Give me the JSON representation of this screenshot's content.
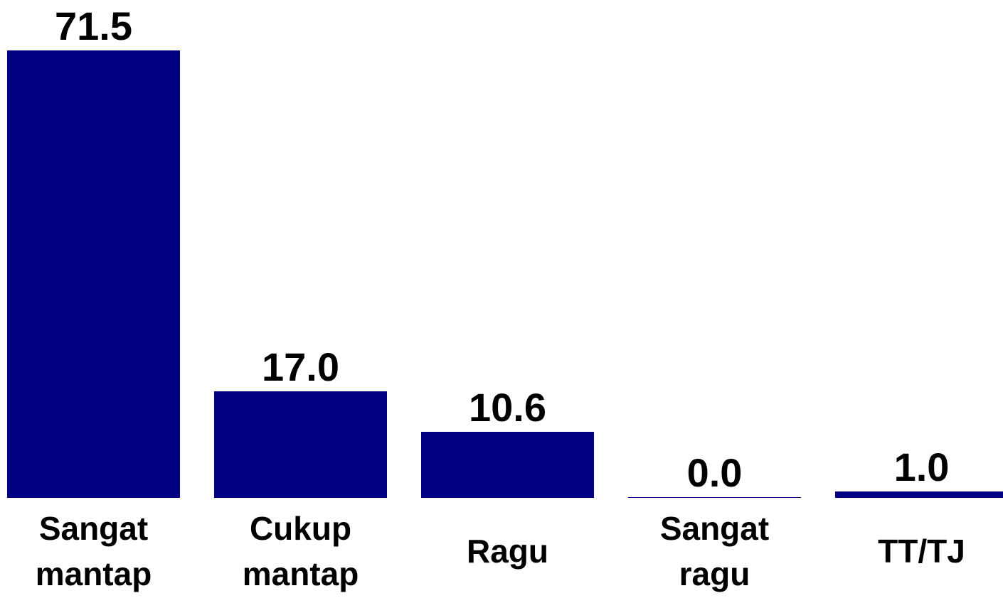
{
  "chart_data": {
    "type": "bar",
    "categories": [
      "Sangat\nmantap",
      "Cukup\nmantap",
      "Ragu",
      "Sangat\nragu",
      "TT/TJ"
    ],
    "values": [
      71.5,
      17.0,
      10.6,
      0.0,
      1.0
    ],
    "value_labels": [
      "71.5",
      "17.0",
      "10.6",
      "0.0",
      "1.0"
    ],
    "color": "#000080"
  }
}
